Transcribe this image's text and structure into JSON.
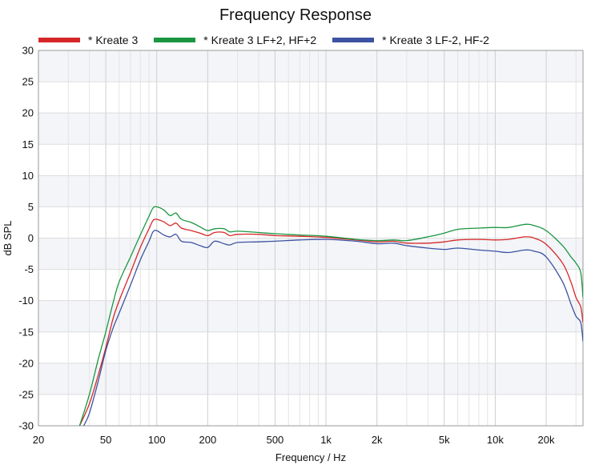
{
  "chart_data": {
    "type": "line",
    "title": "Frequency Response",
    "xlabel": "Frequency / Hz",
    "ylabel": "dB SPL",
    "x_scale": "log",
    "xlim": [
      20,
      33000
    ],
    "ylim": [
      -30,
      30
    ],
    "x_ticks": [
      20,
      50,
      100,
      200,
      500,
      1000,
      2000,
      5000,
      10000,
      20000
    ],
    "x_tick_labels": [
      "20",
      "50",
      "100",
      "200",
      "500",
      "1k",
      "2k",
      "5k",
      "10k",
      "20k"
    ],
    "y_ticks": [
      -30,
      -25,
      -20,
      -15,
      -10,
      -5,
      0,
      5,
      10,
      15,
      20,
      25,
      30
    ],
    "y_tick_labels": [
      "-30",
      "-25",
      "-20",
      "-15",
      "-10",
      "-5",
      "0",
      "5",
      "10",
      "15",
      "20",
      "25",
      "30"
    ],
    "grid": true,
    "legend_position": "top",
    "series": [
      {
        "name": "* Kreate 3",
        "color": "#d62728",
        "points": [
          [
            35,
            -30
          ],
          [
            40,
            -26.5
          ],
          [
            45,
            -22
          ],
          [
            50,
            -17.5
          ],
          [
            55,
            -13
          ],
          [
            60,
            -10
          ],
          [
            70,
            -5.5
          ],
          [
            80,
            -1.5
          ],
          [
            90,
            1.5
          ],
          [
            95,
            2.8
          ],
          [
            100,
            3.0
          ],
          [
            110,
            2.6
          ],
          [
            120,
            2.0
          ],
          [
            130,
            2.4
          ],
          [
            140,
            1.6
          ],
          [
            160,
            1.2
          ],
          [
            180,
            0.8
          ],
          [
            200,
            0.4
          ],
          [
            220,
            0.9
          ],
          [
            250,
            0.9
          ],
          [
            270,
            0.4
          ],
          [
            300,
            0.6
          ],
          [
            400,
            0.6
          ],
          [
            500,
            0.4
          ],
          [
            700,
            0.3
          ],
          [
            1000,
            0.1
          ],
          [
            1500,
            -0.3
          ],
          [
            2000,
            -0.6
          ],
          [
            2500,
            -0.5
          ],
          [
            3000,
            -0.8
          ],
          [
            4000,
            -0.8
          ],
          [
            5000,
            -0.6
          ],
          [
            6000,
            -0.3
          ],
          [
            8000,
            -0.2
          ],
          [
            10000,
            -0.3
          ],
          [
            12000,
            -0.2
          ],
          [
            15000,
            0.2
          ],
          [
            17000,
            0.0
          ],
          [
            20000,
            -1.0
          ],
          [
            25000,
            -4.0
          ],
          [
            28000,
            -7.0
          ],
          [
            30000,
            -9.5
          ],
          [
            32000,
            -11.0
          ],
          [
            33000,
            -13.5
          ]
        ]
      },
      {
        "name": "* Kreate 3 LF+2, HF+2",
        "color": "#1a9641",
        "points": [
          [
            35,
            -30
          ],
          [
            40,
            -25
          ],
          [
            45,
            -19.5
          ],
          [
            50,
            -15
          ],
          [
            55,
            -10.5
          ],
          [
            60,
            -7
          ],
          [
            70,
            -3
          ],
          [
            80,
            0.5
          ],
          [
            90,
            3.5
          ],
          [
            95,
            4.8
          ],
          [
            100,
            5.0
          ],
          [
            110,
            4.5
          ],
          [
            120,
            3.6
          ],
          [
            130,
            4.0
          ],
          [
            140,
            3.0
          ],
          [
            160,
            2.5
          ],
          [
            180,
            1.8
          ],
          [
            200,
            1.2
          ],
          [
            220,
            1.5
          ],
          [
            250,
            1.5
          ],
          [
            270,
            1.0
          ],
          [
            300,
            1.1
          ],
          [
            400,
            0.9
          ],
          [
            500,
            0.7
          ],
          [
            700,
            0.5
          ],
          [
            1000,
            0.3
          ],
          [
            1500,
            -0.2
          ],
          [
            2000,
            -0.4
          ],
          [
            2500,
            -0.3
          ],
          [
            3000,
            -0.4
          ],
          [
            4000,
            0.2
          ],
          [
            5000,
            0.8
          ],
          [
            6000,
            1.4
          ],
          [
            8000,
            1.6
          ],
          [
            10000,
            1.7
          ],
          [
            12000,
            1.7
          ],
          [
            15000,
            2.2
          ],
          [
            17000,
            2.0
          ],
          [
            20000,
            1.2
          ],
          [
            25000,
            -1.2
          ],
          [
            28000,
            -3.0
          ],
          [
            30000,
            -4.0
          ],
          [
            32000,
            -5.5
          ],
          [
            33000,
            -9.5
          ]
        ]
      },
      {
        "name": "* Kreate 3 LF-2, HF-2",
        "color": "#3d52a1",
        "points": [
          [
            37,
            -30
          ],
          [
            40,
            -28
          ],
          [
            45,
            -23
          ],
          [
            50,
            -18
          ],
          [
            55,
            -14.5
          ],
          [
            60,
            -12
          ],
          [
            70,
            -7.5
          ],
          [
            80,
            -3.5
          ],
          [
            90,
            -0.5
          ],
          [
            95,
            1.0
          ],
          [
            100,
            1.2
          ],
          [
            110,
            0.5
          ],
          [
            120,
            0.2
          ],
          [
            130,
            0.6
          ],
          [
            140,
            -0.5
          ],
          [
            160,
            -0.7
          ],
          [
            180,
            -1.2
          ],
          [
            200,
            -1.5
          ],
          [
            220,
            -0.5
          ],
          [
            250,
            -0.9
          ],
          [
            270,
            -1.1
          ],
          [
            300,
            -0.7
          ],
          [
            400,
            -0.6
          ],
          [
            500,
            -0.5
          ],
          [
            700,
            -0.3
          ],
          [
            1000,
            -0.2
          ],
          [
            1500,
            -0.5
          ],
          [
            2000,
            -0.9
          ],
          [
            2500,
            -0.8
          ],
          [
            3000,
            -1.2
          ],
          [
            4000,
            -1.6
          ],
          [
            5000,
            -1.8
          ],
          [
            6000,
            -1.6
          ],
          [
            8000,
            -1.9
          ],
          [
            10000,
            -2.1
          ],
          [
            12000,
            -2.3
          ],
          [
            15000,
            -1.9
          ],
          [
            17000,
            -2.1
          ],
          [
            20000,
            -3.0
          ],
          [
            25000,
            -7.0
          ],
          [
            28000,
            -10.5
          ],
          [
            30000,
            -12.5
          ],
          [
            32000,
            -13.5
          ],
          [
            33000,
            -16.5
          ]
        ]
      }
    ]
  }
}
